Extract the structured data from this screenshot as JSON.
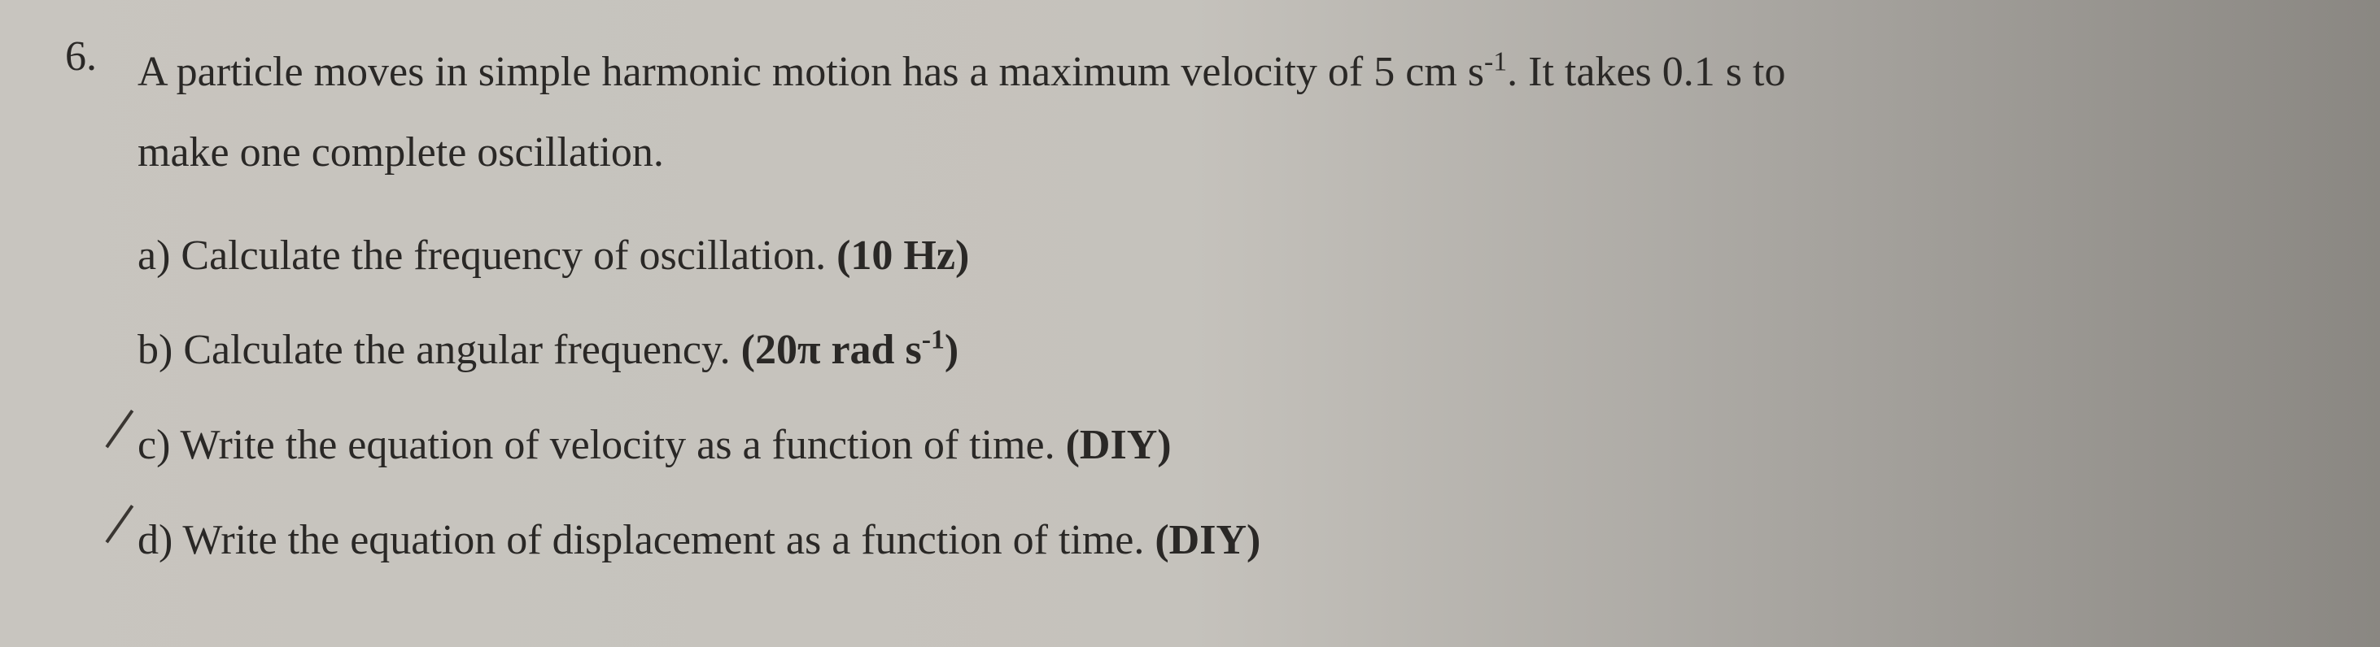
{
  "question": {
    "number": "6.",
    "text_line1": "A particle moves in simple harmonic motion has a maximum velocity of 5 cm s",
    "text_exp1": "-1",
    "text_line1_end": ". It takes 0.1 s to",
    "text_line2": "make one complete oscillation.",
    "parts": {
      "a": {
        "label": "a)",
        "text": "Calculate the frequency of oscillation.",
        "answer": "(10 Hz)"
      },
      "b": {
        "label": "b)",
        "text": "Calculate the angular frequency.",
        "answer_prefix": "(20",
        "answer_pi": "π",
        "answer_unit": " rad s",
        "answer_exp": "-1",
        "answer_suffix": ")"
      },
      "c": {
        "label": "c)",
        "text": "Write the equation of velocity as a function of time.",
        "answer": "(DIY)"
      },
      "d": {
        "label": "d)",
        "text": "Write the equation of displacement as a function of time.",
        "answer": "(DIY)"
      }
    }
  },
  "colors": {
    "background_left": "#c8c5bf",
    "background_right": "#8a8782",
    "text_color": "#2a2826",
    "pen_mark": "#3a3632"
  },
  "typography": {
    "font_family": "Times New Roman",
    "body_fontsize": 52,
    "line_height": 1.9
  }
}
